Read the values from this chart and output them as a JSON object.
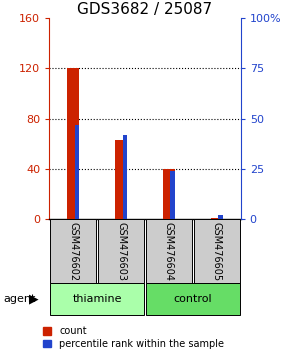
{
  "title": "GDS3682 / 25087",
  "samples": [
    "GSM476602",
    "GSM476603",
    "GSM476604",
    "GSM476605"
  ],
  "count_values": [
    120,
    63,
    40,
    1
  ],
  "percentile_values": [
    47,
    42,
    24,
    2
  ],
  "left_ylim": [
    0,
    160
  ],
  "right_ylim": [
    0,
    100
  ],
  "left_yticks": [
    0,
    40,
    80,
    120,
    160
  ],
  "right_yticks": [
    0,
    25,
    50,
    75,
    100
  ],
  "right_yticklabels": [
    "0",
    "25",
    "50",
    "75",
    "100%"
  ],
  "count_color": "#cc2200",
  "percentile_color": "#2244cc",
  "groups": [
    {
      "label": "thiamine",
      "indices": [
        0,
        1
      ],
      "color": "#aaffaa"
    },
    {
      "label": "control",
      "indices": [
        2,
        3
      ],
      "color": "#66dd66"
    }
  ],
  "group_bg_color": "#cccccc",
  "left_axis_color": "#cc2200",
  "right_axis_color": "#2244cc",
  "title_fontsize": 11,
  "tick_fontsize": 8,
  "legend_fontsize": 7,
  "agent_label": "agent"
}
